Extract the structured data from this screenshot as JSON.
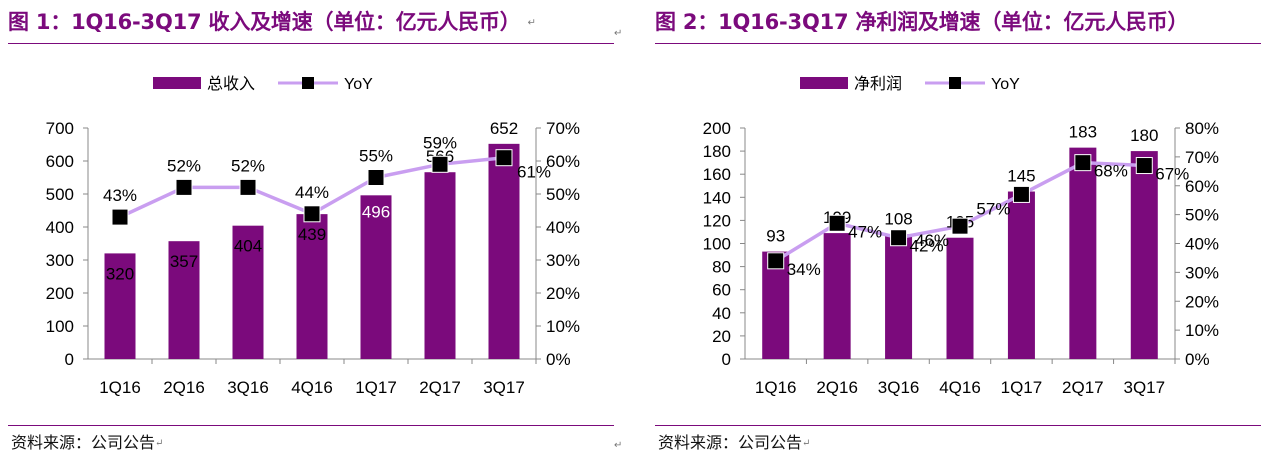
{
  "pilcrow": "↵",
  "colors": {
    "accent": "#7b0a7c",
    "bar": "#7b0a7c",
    "line": "#c99ef0",
    "marker": "#000000"
  },
  "chart_data": [
    {
      "type": "bar",
      "title": "图 1：1Q16-3Q17 收入及增速（单位：亿元人民币）",
      "categories": [
        "1Q16",
        "2Q16",
        "3Q16",
        "4Q16",
        "1Q17",
        "2Q17",
        "3Q17"
      ],
      "series": [
        {
          "name": "总收入",
          "type": "bar",
          "axis": "left",
          "values": [
            320,
            357,
            404,
            439,
            496,
            566,
            652
          ]
        },
        {
          "name": "YoY",
          "type": "line",
          "axis": "right",
          "values": [
            43,
            52,
            52,
            44,
            55,
            59,
            61
          ],
          "unit": "%"
        }
      ],
      "bar_labels": [
        "320",
        "357",
        "404",
        "439",
        "496",
        "566",
        "652"
      ],
      "line_labels": [
        "43%",
        "52%",
        "52%",
        "44%",
        "55%",
        "59%",
        "61%"
      ],
      "y_left": {
        "min": 0,
        "max": 700,
        "ticks": [
          "0",
          "100",
          "200",
          "300",
          "400",
          "500",
          "600",
          "700"
        ]
      },
      "y_right": {
        "min": 0,
        "max": 70,
        "ticks": [
          "0%",
          "10%",
          "20%",
          "30%",
          "40%",
          "50%",
          "60%",
          "70%"
        ]
      },
      "legend_position": "top-center",
      "grid": false,
      "source": "资料来源：公司公告"
    },
    {
      "type": "bar",
      "title": "图 2：1Q16-3Q17 净利润及增速（单位：亿元人民币）",
      "categories": [
        "1Q16",
        "2Q16",
        "3Q16",
        "4Q16",
        "1Q17",
        "2Q17",
        "3Q17"
      ],
      "series": [
        {
          "name": "净利润",
          "type": "bar",
          "axis": "left",
          "values": [
            93,
            109,
            108,
            105,
            145,
            183,
            180
          ]
        },
        {
          "name": "YoY",
          "type": "line",
          "axis": "right",
          "values": [
            34,
            47,
            42,
            46,
            57,
            68,
            67
          ],
          "unit": "%"
        }
      ],
      "bar_labels": [
        "93",
        "109",
        "108",
        "105",
        "145",
        "183",
        "180"
      ],
      "line_labels": [
        "34%",
        "47%",
        "42%",
        "46%",
        "57%",
        "68%",
        "67%"
      ],
      "y_left": {
        "min": 0,
        "max": 200,
        "ticks": [
          "0",
          "20",
          "40",
          "60",
          "80",
          "100",
          "120",
          "140",
          "160",
          "180",
          "200"
        ]
      },
      "y_right": {
        "min": 0,
        "max": 80,
        "ticks": [
          "0%",
          "10%",
          "20%",
          "30%",
          "40%",
          "50%",
          "60%",
          "70%",
          "80%"
        ]
      },
      "legend_position": "top-center",
      "grid": false,
      "source": "资料来源：公司公告"
    }
  ]
}
